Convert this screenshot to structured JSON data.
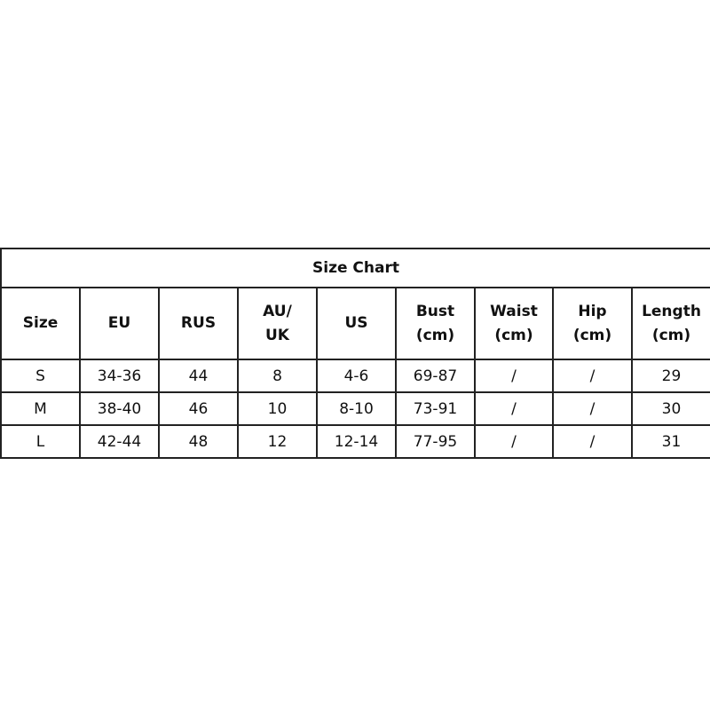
{
  "title": "Size Chart",
  "headers": [
    [
      "Size"
    ],
    [
      "EU"
    ],
    [
      "RUS"
    ],
    [
      "AU/",
      "UK"
    ],
    [
      "US"
    ],
    [
      "Bust",
      "(cm)"
    ],
    [
      "Waist",
      "(cm)"
    ],
    [
      "Hip",
      "(cm)"
    ],
    [
      "Length",
      "(cm)"
    ]
  ],
  "rows": [
    [
      "S",
      "34-36",
      "44",
      "8",
      "4-6",
      "69-87",
      "/",
      "/",
      "29"
    ],
    [
      "M",
      "38-40",
      "46",
      "10",
      "8-10",
      "73-91",
      "/",
      "/",
      "30"
    ],
    [
      "L",
      "42-44",
      "48",
      "12",
      "12-14",
      "77-95",
      "/",
      "/",
      "31"
    ]
  ]
}
